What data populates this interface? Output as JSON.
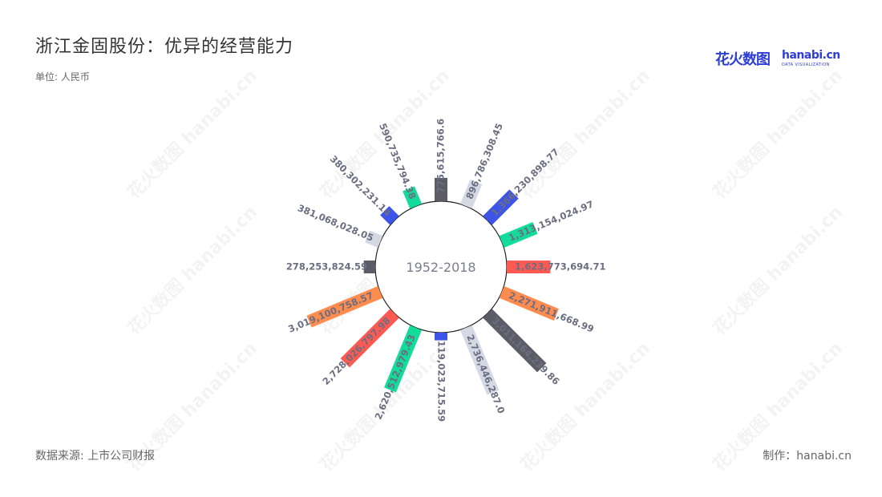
{
  "header": {
    "title": "浙江金固股份：优异的经营能力",
    "unit": "单位: 人民币"
  },
  "logo": {
    "cn": "花火数图",
    "en": "hanabi.cn",
    "sub": "DATA VISUALIZATION"
  },
  "footer": {
    "source": "数据来源: 上市公司财报",
    "maker": "制作：hanabi.cn"
  },
  "watermark": "花火数图 hanabi.cn",
  "colors": [
    "#5b5c66",
    "#d5d9e3",
    "#3d54e8",
    "#13dc9a",
    "#ff5a52",
    "#ff8c4f"
  ],
  "chart_data": {
    "type": "bar",
    "layout": "radial",
    "center_label": "1952-2018",
    "series": [
      {
        "labels": [
          "775,615,766.6",
          "896,786,308.45",
          "1,366,230,898.77",
          "1,313,154,024.97",
          "1,623,773,694.71",
          "2,271,911,668.99",
          "3,011,164,239.86",
          "2,736,446,287.0",
          "119,023,715.59",
          "2,620,512,979.43",
          "2,728,026,797.98",
          "3,019,100,758.57",
          "278,253,824.59",
          "381,068,028.05",
          "380,302,231.14",
          "590,735,794.38"
        ],
        "values": [
          775615766.6,
          896786308.45,
          1366230898.77,
          1313154024.97,
          1623773694.71,
          2271911668.99,
          3011164239.86,
          2736446287.0,
          119023715.59,
          2620512979.43,
          2728026797.98,
          3019100758.57,
          278253824.59,
          381068028.05,
          380302231.14,
          590735794.38
        ]
      }
    ]
  }
}
